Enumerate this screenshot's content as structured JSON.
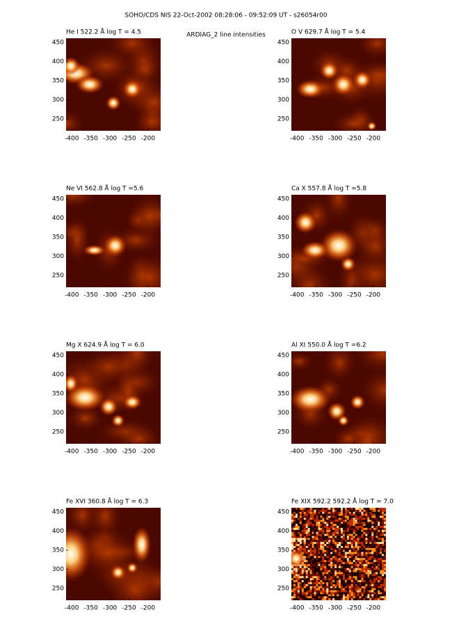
{
  "title": "SOHO/CDS NIS  22-Oct-2002 08:28:06 - 09:52:09 UT - s26054r00",
  "subtitle": "ARDIAG_2 line intensities",
  "chart_data": [
    {
      "type": "image",
      "title": "He I  522.2 Å log T = 4.5",
      "xlim": [
        -415,
        -167
      ],
      "ylim": [
        219,
        461
      ],
      "xticks": [
        -400,
        -350,
        -300,
        -250,
        -200
      ],
      "yticks": [
        250,
        300,
        350,
        400,
        450
      ]
    },
    {
      "type": "image",
      "title": "O V  629.7 Å log T = 5.4",
      "xlim": [
        -415,
        -167
      ],
      "ylim": [
        219,
        461
      ],
      "xticks": [
        -400,
        -350,
        -300,
        -250,
        -200
      ],
      "yticks": [
        250,
        300,
        350,
        400,
        450
      ]
    },
    {
      "type": "image",
      "title": "Ne VI  562.8 Å log T =5.6",
      "xlim": [
        -415,
        -167
      ],
      "ylim": [
        219,
        461
      ],
      "xticks": [
        -400,
        -350,
        -300,
        -250,
        -200
      ],
      "yticks": [
        250,
        300,
        350,
        400,
        450
      ]
    },
    {
      "type": "image",
      "title": "Ca X  557.8 Å log T =5.8",
      "xlim": [
        -415,
        -167
      ],
      "ylim": [
        219,
        461
      ],
      "xticks": [
        -400,
        -350,
        -300,
        -250,
        -200
      ],
      "yticks": [
        250,
        300,
        350,
        400,
        450
      ]
    },
    {
      "type": "image",
      "title": "Mg X  624.9 Å log T = 6.0",
      "xlim": [
        -415,
        -167
      ],
      "ylim": [
        219,
        461
      ],
      "xticks": [
        -400,
        -350,
        -300,
        -250,
        -200
      ],
      "yticks": [
        250,
        300,
        350,
        400,
        450
      ]
    },
    {
      "type": "image",
      "title": "Al XI  550.0 Å log T =6.2",
      "xlim": [
        -415,
        -167
      ],
      "ylim": [
        219,
        461
      ],
      "xticks": [
        -400,
        -350,
        -300,
        -250,
        -200
      ],
      "yticks": [
        250,
        300,
        350,
        400,
        450
      ]
    },
    {
      "type": "image",
      "title": "Fe XVI  360.8 Å log T = 6.3",
      "xlim": [
        -415,
        -167
      ],
      "ylim": [
        219,
        461
      ],
      "xticks": [
        -400,
        -350,
        -300,
        -250,
        -200
      ],
      "yticks": [
        250,
        300,
        350,
        400,
        450
      ]
    },
    {
      "type": "image",
      "title": "Fe XIX 592.2  592.2 Å log T = 7.0",
      "xlim": [
        -415,
        -167
      ],
      "ylim": [
        219,
        461
      ],
      "xticks": [
        -400,
        -350,
        -300,
        -250,
        -200
      ],
      "yticks": [
        250,
        300,
        350,
        400,
        450
      ]
    }
  ]
}
